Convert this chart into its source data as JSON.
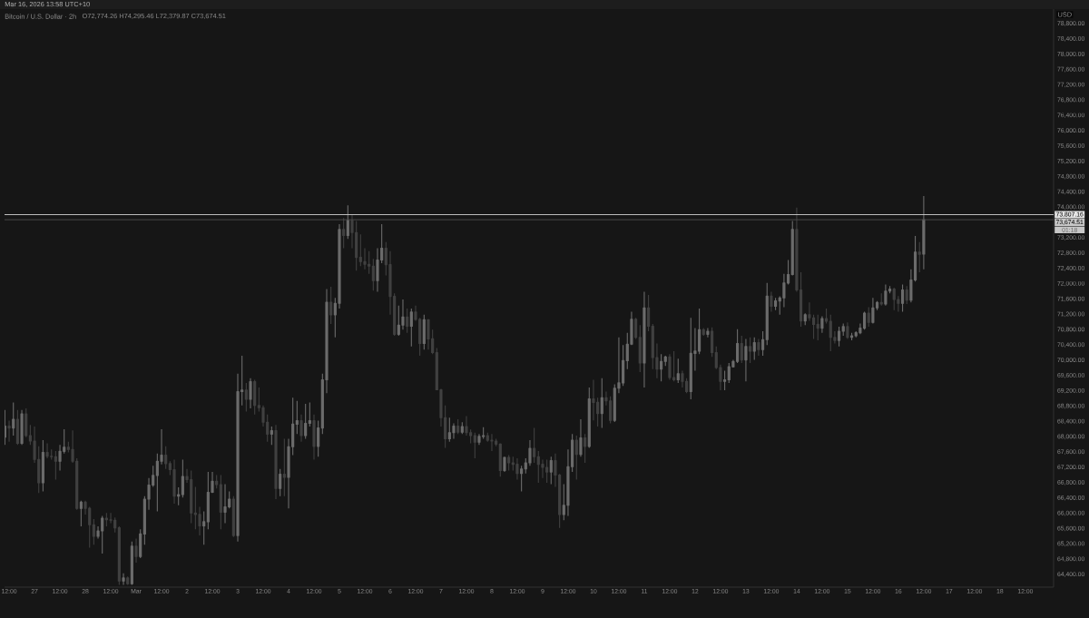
{
  "chart_data": {
    "type": "candlestick",
    "title": "Bitcoin / U.S. Dollar · 2h",
    "subtitle": "O72,774.26 H74,295.46 L72,379.87 C73,674.51",
    "ylabel": "USD",
    "annotations": [
      "Mar 16, 2026 13:58 UTC+10",
      "01:18"
    ],
    "xlim": [
      "2026-02-26T09:50",
      "2026-03-19T01:20"
    ],
    "ylim": [
      64070,
      79180
    ],
    "x": [
      "2026-02-26T10:00",
      "2026-02-26T12:00",
      "2026-02-26T14:00",
      "2026-02-26T16:00",
      "2026-02-26T18:00",
      "2026-02-26T20:00",
      "2026-02-26T22:00",
      "2026-02-27T00:00",
      "2026-02-27T02:00",
      "2026-02-27T04:00",
      "2026-02-27T06:00",
      "2026-02-27T08:00",
      "2026-02-27T10:00",
      "2026-02-27T12:00",
      "2026-02-27T14:00",
      "2026-02-27T16:00",
      "2026-02-27T18:00",
      "2026-02-27T20:00",
      "2026-02-27T22:00",
      "2026-02-28T00:00",
      "2026-02-28T02:00",
      "2026-02-28T04:00",
      "2026-02-28T06:00",
      "2026-02-28T08:00",
      "2026-02-28T10:00",
      "2026-02-28T12:00",
      "2026-02-28T14:00",
      "2026-02-28T16:00",
      "2026-02-28T18:00",
      "2026-02-28T20:00",
      "2026-02-28T22:00",
      "2026-03-01T00:00",
      "2026-03-01T02:00",
      "2026-03-01T04:00",
      "2026-03-01T06:00",
      "2026-03-01T08:00",
      "2026-03-01T10:00",
      "2026-03-01T12:00",
      "2026-03-01T14:00",
      "2026-03-01T16:00",
      "2026-03-01T18:00",
      "2026-03-01T20:00",
      "2026-03-01T22:00",
      "2026-03-02T00:00",
      "2026-03-02T02:00",
      "2026-03-02T04:00",
      "2026-03-02T06:00",
      "2026-03-02T08:00",
      "2026-03-02T10:00",
      "2026-03-02T12:00",
      "2026-03-02T14:00",
      "2026-03-02T16:00",
      "2026-03-02T18:00",
      "2026-03-02T20:00",
      "2026-03-02T22:00",
      "2026-03-03T00:00",
      "2026-03-03T02:00",
      "2026-03-03T04:00",
      "2026-03-03T06:00",
      "2026-03-03T08:00",
      "2026-03-03T10:00",
      "2026-03-03T12:00",
      "2026-03-03T14:00",
      "2026-03-03T16:00",
      "2026-03-03T18:00",
      "2026-03-03T20:00",
      "2026-03-03T22:00",
      "2026-03-04T00:00",
      "2026-03-04T02:00",
      "2026-03-04T04:00",
      "2026-03-04T06:00",
      "2026-03-04T08:00",
      "2026-03-04T10:00",
      "2026-03-04T12:00",
      "2026-03-04T14:00",
      "2026-03-04T16:00",
      "2026-03-04T18:00",
      "2026-03-04T20:00",
      "2026-03-04T22:00",
      "2026-03-05T00:00",
      "2026-03-05T02:00",
      "2026-03-05T04:00",
      "2026-03-05T06:00",
      "2026-03-05T08:00",
      "2026-03-05T10:00",
      "2026-03-05T12:00",
      "2026-03-05T14:00",
      "2026-03-05T16:00",
      "2026-03-05T18:00",
      "2026-03-05T20:00",
      "2026-03-05T22:00",
      "2026-03-06T00:00",
      "2026-03-06T02:00",
      "2026-03-06T04:00",
      "2026-03-06T06:00",
      "2026-03-06T08:00",
      "2026-03-06T10:00",
      "2026-03-06T12:00",
      "2026-03-06T14:00",
      "2026-03-06T16:00",
      "2026-03-06T18:00",
      "2026-03-06T20:00",
      "2026-03-06T22:00",
      "2026-03-07T00:00",
      "2026-03-07T02:00",
      "2026-03-07T04:00",
      "2026-03-07T06:00",
      "2026-03-07T08:00",
      "2026-03-07T10:00",
      "2026-03-07T12:00",
      "2026-03-07T14:00",
      "2026-03-07T16:00",
      "2026-03-07T18:00",
      "2026-03-07T20:00",
      "2026-03-07T22:00",
      "2026-03-08T00:00",
      "2026-03-08T02:00",
      "2026-03-08T04:00",
      "2026-03-08T06:00",
      "2026-03-08T08:00",
      "2026-03-08T10:00",
      "2026-03-08T12:00",
      "2026-03-08T14:00",
      "2026-03-08T16:00",
      "2026-03-08T18:00",
      "2026-03-08T20:00",
      "2026-03-08T22:00",
      "2026-03-09T00:00",
      "2026-03-09T02:00",
      "2026-03-09T04:00",
      "2026-03-09T06:00",
      "2026-03-09T08:00",
      "2026-03-09T10:00",
      "2026-03-09T12:00",
      "2026-03-09T14:00",
      "2026-03-09T16:00",
      "2026-03-09T18:00",
      "2026-03-09T20:00",
      "2026-03-09T22:00",
      "2026-03-10T00:00",
      "2026-03-10T02:00",
      "2026-03-10T04:00",
      "2026-03-10T06:00",
      "2026-03-10T08:00",
      "2026-03-10T10:00",
      "2026-03-10T12:00",
      "2026-03-10T14:00",
      "2026-03-10T16:00",
      "2026-03-10T18:00",
      "2026-03-10T20:00",
      "2026-03-10T22:00",
      "2026-03-11T00:00",
      "2026-03-11T02:00",
      "2026-03-11T04:00",
      "2026-03-11T06:00",
      "2026-03-11T08:00",
      "2026-03-11T10:00",
      "2026-03-11T12:00",
      "2026-03-11T14:00",
      "2026-03-11T16:00",
      "2026-03-11T18:00",
      "2026-03-11T20:00",
      "2026-03-11T22:00",
      "2026-03-12T00:00",
      "2026-03-12T02:00",
      "2026-03-12T04:00",
      "2026-03-12T06:00",
      "2026-03-12T08:00",
      "2026-03-12T10:00",
      "2026-03-12T12:00",
      "2026-03-12T14:00",
      "2026-03-12T16:00",
      "2026-03-12T18:00",
      "2026-03-12T20:00",
      "2026-03-12T22:00",
      "2026-03-13T00:00",
      "2026-03-13T02:00",
      "2026-03-13T04:00",
      "2026-03-13T06:00",
      "2026-03-13T08:00",
      "2026-03-13T10:00",
      "2026-03-13T12:00",
      "2026-03-13T14:00",
      "2026-03-13T16:00",
      "2026-03-13T18:00",
      "2026-03-13T20:00",
      "2026-03-13T22:00",
      "2026-03-14T00:00",
      "2026-03-14T02:00",
      "2026-03-14T04:00",
      "2026-03-14T06:00",
      "2026-03-14T08:00",
      "2026-03-14T10:00",
      "2026-03-14T12:00",
      "2026-03-14T14:00",
      "2026-03-14T16:00",
      "2026-03-14T18:00",
      "2026-03-14T20:00",
      "2026-03-14T22:00",
      "2026-03-15T00:00",
      "2026-03-15T02:00",
      "2026-03-15T04:00",
      "2026-03-15T06:00",
      "2026-03-15T08:00",
      "2026-03-15T10:00",
      "2026-03-15T12:00",
      "2026-03-15T14:00",
      "2026-03-15T16:00",
      "2026-03-15T18:00",
      "2026-03-15T20:00",
      "2026-03-15T22:00",
      "2026-03-16T00:00",
      "2026-03-16T02:00",
      "2026-03-16T04:00",
      "2026-03-16T06:00",
      "2026-03-16T08:00",
      "2026-03-16T10:00",
      "2026-03-16T12:00"
    ],
    "ohlc": [
      [
        67990,
        68700,
        67790,
        68280
      ],
      [
        68280,
        68420,
        67870,
        68230
      ],
      [
        68230,
        68900,
        68030,
        68460
      ],
      [
        68460,
        68700,
        67790,
        67830
      ],
      [
        67830,
        68700,
        67790,
        68600
      ],
      [
        68600,
        68740,
        67990,
        68030
      ],
      [
        68030,
        68310,
        67790,
        67890
      ],
      [
        67890,
        68270,
        67320,
        67410
      ],
      [
        67410,
        67750,
        66530,
        66800
      ],
      [
        66800,
        67910,
        66570,
        67590
      ],
      [
        67590,
        67830,
        67440,
        67490
      ],
      [
        67490,
        67670,
        67400,
        67480
      ],
      [
        67480,
        67630,
        66880,
        67360
      ],
      [
        67360,
        67790,
        67120,
        67620
      ],
      [
        67620,
        68200,
        67560,
        67730
      ],
      [
        67730,
        67870,
        67590,
        67670
      ],
      [
        67670,
        68170,
        67320,
        67360
      ],
      [
        67360,
        67440,
        66090,
        66130
      ],
      [
        66130,
        66330,
        65660,
        66290
      ],
      [
        66290,
        66330,
        65970,
        66130
      ],
      [
        66130,
        66170,
        65100,
        65700
      ],
      [
        65700,
        65850,
        65180,
        65400
      ],
      [
        65400,
        65660,
        65340,
        65540
      ],
      [
        65540,
        65930,
        64950,
        65870
      ],
      [
        65870,
        66010,
        65660,
        65830
      ],
      [
        65830,
        66010,
        65740,
        65820
      ],
      [
        65820,
        65890,
        65500,
        65620
      ],
      [
        65620,
        65660,
        64130,
        64230
      ],
      [
        64230,
        64430,
        64130,
        64310
      ],
      [
        64310,
        64350,
        64130,
        64160
      ],
      [
        64160,
        65260,
        64130,
        65140
      ],
      [
        65140,
        65340,
        64710,
        64870
      ],
      [
        64870,
        65580,
        64830,
        65460
      ],
      [
        65460,
        66450,
        65180,
        66370
      ],
      [
        66370,
        66920,
        66090,
        66740
      ],
      [
        66740,
        67240,
        66690,
        66990
      ],
      [
        66990,
        67560,
        66050,
        67360
      ],
      [
        67360,
        68200,
        67280,
        67520
      ],
      [
        67520,
        67750,
        67160,
        67300
      ],
      [
        67300,
        67360,
        67000,
        67140
      ],
      [
        67140,
        67400,
        66250,
        66450
      ],
      [
        66450,
        66680,
        66210,
        66490
      ],
      [
        66490,
        67400,
        66410,
        66960
      ],
      [
        66960,
        67160,
        66800,
        66880
      ],
      [
        66880,
        67120,
        65740,
        66010
      ],
      [
        66010,
        66690,
        65580,
        65970
      ],
      [
        65970,
        66170,
        65420,
        65670
      ],
      [
        65670,
        66050,
        65180,
        65780
      ],
      [
        65780,
        67080,
        65580,
        66550
      ],
      [
        66550,
        67080,
        66530,
        66840
      ],
      [
        66840,
        67000,
        66650,
        66750
      ],
      [
        66750,
        67000,
        65580,
        66030
      ],
      [
        66030,
        66760,
        65740,
        66170
      ],
      [
        66170,
        66570,
        66130,
        66370
      ],
      [
        66370,
        66450,
        65380,
        65420
      ],
      [
        65420,
        69650,
        65260,
        69180
      ],
      [
        69180,
        70120,
        68820,
        69220
      ],
      [
        69220,
        69410,
        68660,
        68980
      ],
      [
        68980,
        69530,
        68740,
        69440
      ],
      [
        69440,
        69490,
        68580,
        68820
      ],
      [
        68820,
        69290,
        68660,
        68760
      ],
      [
        68760,
        68820,
        68270,
        68380
      ],
      [
        68380,
        68580,
        67870,
        68070
      ],
      [
        68070,
        68270,
        67790,
        68160
      ],
      [
        68160,
        68310,
        66370,
        66650
      ],
      [
        66650,
        67160,
        66450,
        67020
      ],
      [
        67020,
        67950,
        66450,
        66940
      ],
      [
        66940,
        67950,
        66130,
        67740
      ],
      [
        67740,
        69020,
        67520,
        68330
      ],
      [
        68330,
        68940,
        68070,
        68420
      ],
      [
        68420,
        68580,
        67870,
        68030
      ],
      [
        68030,
        68860,
        67950,
        68350
      ],
      [
        68350,
        68900,
        68270,
        68420
      ],
      [
        68420,
        68580,
        67400,
        67750
      ],
      [
        67750,
        68420,
        67480,
        68230
      ],
      [
        68230,
        69650,
        68070,
        69490
      ],
      [
        69490,
        71860,
        69140,
        71520
      ],
      [
        71520,
        71920,
        70950,
        71190
      ],
      [
        71190,
        71630,
        70600,
        71490
      ],
      [
        71490,
        73560,
        71350,
        73420
      ],
      [
        73420,
        73720,
        72930,
        73260
      ],
      [
        73260,
        74050,
        73170,
        73660
      ],
      [
        73660,
        73800,
        72930,
        73340
      ],
      [
        73340,
        73640,
        72340,
        72690
      ],
      [
        72690,
        73290,
        72460,
        72580
      ],
      [
        72580,
        72930,
        72380,
        72510
      ],
      [
        72510,
        72850,
        72260,
        72460
      ],
      [
        72460,
        72650,
        71820,
        72080
      ],
      [
        72080,
        72930,
        71790,
        72620
      ],
      [
        72620,
        73560,
        72540,
        72930
      ],
      [
        72930,
        73090,
        72220,
        72500
      ],
      [
        72500,
        72850,
        71190,
        71670
      ],
      [
        71670,
        71750,
        70640,
        70680
      ],
      [
        70680,
        71430,
        70640,
        70920
      ],
      [
        70920,
        71590,
        70800,
        71130
      ],
      [
        71130,
        71350,
        70720,
        70890
      ],
      [
        70890,
        71350,
        70360,
        71260
      ],
      [
        71260,
        71430,
        71030,
        71070
      ],
      [
        71070,
        71110,
        70120,
        70440
      ],
      [
        70440,
        71190,
        70280,
        71060
      ],
      [
        71060,
        71070,
        70280,
        70560
      ],
      [
        70560,
        70800,
        70160,
        70200
      ],
      [
        70200,
        70320,
        69220,
        69230
      ],
      [
        69230,
        69250,
        68270,
        68500
      ],
      [
        68500,
        68820,
        67710,
        67950
      ],
      [
        67950,
        68500,
        67870,
        68110
      ],
      [
        68110,
        68350,
        67950,
        68280
      ],
      [
        68280,
        68460,
        68070,
        68120
      ],
      [
        68120,
        68380,
        68070,
        68270
      ],
      [
        68270,
        68540,
        68030,
        68110
      ],
      [
        68110,
        68190,
        67830,
        68030
      ],
      [
        68030,
        68110,
        67440,
        67860
      ],
      [
        67860,
        68070,
        67790,
        68010
      ],
      [
        68010,
        68250,
        67950,
        68030
      ],
      [
        68030,
        68110,
        67870,
        67910
      ],
      [
        67910,
        68070,
        67630,
        67890
      ],
      [
        67890,
        67950,
        67750,
        67810
      ],
      [
        67810,
        67830,
        66960,
        67120
      ],
      [
        67120,
        67480,
        67080,
        67460
      ],
      [
        67460,
        67520,
        67120,
        67320
      ],
      [
        67320,
        67480,
        67120,
        67280
      ],
      [
        67280,
        67440,
        66880,
        67040
      ],
      [
        67040,
        67240,
        66570,
        67160
      ],
      [
        67160,
        67440,
        67040,
        67320
      ],
      [
        67320,
        67910,
        67240,
        67700
      ],
      [
        67700,
        68230,
        67320,
        67480
      ],
      [
        67480,
        67630,
        66800,
        67280
      ],
      [
        67280,
        67400,
        66920,
        67200
      ],
      [
        67200,
        67400,
        66800,
        67080
      ],
      [
        67080,
        67480,
        66760,
        67380
      ],
      [
        67380,
        67560,
        66690,
        67000
      ],
      [
        67000,
        67030,
        65620,
        65970
      ],
      [
        65970,
        66760,
        65820,
        66210
      ],
      [
        66210,
        67670,
        65930,
        67220
      ],
      [
        67220,
        68070,
        67080,
        67910
      ],
      [
        67910,
        68030,
        66880,
        67540
      ],
      [
        67540,
        68460,
        67480,
        67970
      ],
      [
        67970,
        68070,
        67320,
        67750
      ],
      [
        67750,
        69290,
        67710,
        68990
      ],
      [
        68990,
        69490,
        68430,
        68900
      ],
      [
        68900,
        69020,
        68270,
        68610
      ],
      [
        68610,
        69530,
        68230,
        69020
      ],
      [
        69020,
        69180,
        68820,
        68940
      ],
      [
        68940,
        69060,
        68350,
        68430
      ],
      [
        68430,
        69370,
        68390,
        69270
      ],
      [
        69270,
        70600,
        69140,
        69410
      ],
      [
        69410,
        70400,
        69330,
        69990
      ],
      [
        69990,
        70720,
        69770,
        70420
      ],
      [
        70420,
        71270,
        70400,
        71070
      ],
      [
        71070,
        71110,
        70560,
        70600
      ],
      [
        70600,
        70920,
        69690,
        69930
      ],
      [
        69930,
        71790,
        69290,
        71370
      ],
      [
        71370,
        71710,
        70760,
        70890
      ],
      [
        70890,
        70950,
        69770,
        70070
      ],
      [
        70070,
        70440,
        69530,
        69770
      ],
      [
        69770,
        70160,
        69450,
        69970
      ],
      [
        69970,
        70120,
        69850,
        70090
      ],
      [
        70090,
        70160,
        69490,
        69550
      ],
      [
        69550,
        70240,
        69450,
        69490
      ],
      [
        69490,
        70040,
        69410,
        69650
      ],
      [
        69650,
        69730,
        69290,
        69450
      ],
      [
        69450,
        69530,
        69140,
        69180
      ],
      [
        69180,
        71110,
        68980,
        70180
      ],
      [
        70180,
        70840,
        69730,
        70240
      ],
      [
        70240,
        71350,
        70160,
        70800
      ],
      [
        70800,
        70840,
        70640,
        70680
      ],
      [
        70680,
        70840,
        70600,
        70760
      ],
      [
        70760,
        70860,
        70090,
        70200
      ],
      [
        70200,
        70360,
        69770,
        69810
      ],
      [
        69810,
        69890,
        69220,
        69450
      ],
      [
        69450,
        69730,
        69220,
        69490
      ],
      [
        69490,
        69930,
        69410,
        69830
      ],
      [
        69830,
        70010,
        69810,
        69970
      ],
      [
        69970,
        70810,
        69930,
        70440
      ],
      [
        70440,
        70640,
        69930,
        70010
      ],
      [
        70010,
        70560,
        69450,
        70360
      ],
      [
        70360,
        70600,
        69930,
        70240
      ],
      [
        70240,
        70600,
        70010,
        70460
      ],
      [
        70460,
        70560,
        70120,
        70280
      ],
      [
        70280,
        70760,
        70120,
        70540
      ],
      [
        70540,
        72020,
        70400,
        71680
      ],
      [
        71680,
        71790,
        71270,
        71410
      ],
      [
        71410,
        71630,
        71310,
        71550
      ],
      [
        71550,
        71670,
        71190,
        71630
      ],
      [
        71630,
        72260,
        71390,
        72020
      ],
      [
        72020,
        72620,
        71980,
        72240
      ],
      [
        72240,
        73640,
        72220,
        73420
      ],
      [
        73420,
        73990,
        71790,
        71840
      ],
      [
        71840,
        72300,
        70880,
        71030
      ],
      [
        71030,
        71230,
        70920,
        71190
      ],
      [
        71190,
        71510,
        71030,
        71110
      ],
      [
        71110,
        71190,
        70560,
        70940
      ],
      [
        70940,
        71190,
        70520,
        70840
      ],
      [
        70840,
        71150,
        70720,
        71090
      ],
      [
        71090,
        71350,
        70960,
        71020
      ],
      [
        71020,
        71190,
        70240,
        70600
      ],
      [
        70600,
        70760,
        70440,
        70520
      ],
      [
        70520,
        70880,
        70360,
        70760
      ],
      [
        70760,
        70960,
        70640,
        70880
      ],
      [
        70880,
        70990,
        70560,
        70600
      ],
      [
        70600,
        70720,
        70520,
        70640
      ],
      [
        70640,
        70760,
        70600,
        70720
      ],
      [
        70720,
        70960,
        70680,
        70840
      ],
      [
        70840,
        71270,
        70800,
        71230
      ],
      [
        71230,
        71390,
        70880,
        70990
      ],
      [
        70990,
        71630,
        70960,
        71370
      ],
      [
        71370,
        71550,
        71310,
        71510
      ],
      [
        71510,
        71750,
        71430,
        71470
      ],
      [
        71470,
        71980,
        71430,
        71810
      ],
      [
        71810,
        71940,
        71750,
        71860
      ],
      [
        71860,
        71900,
        71310,
        71590
      ],
      [
        71590,
        71680,
        71270,
        71490
      ],
      [
        71490,
        71980,
        71270,
        71840
      ],
      [
        71840,
        71940,
        71470,
        71570
      ],
      [
        71570,
        72380,
        71510,
        72100
      ],
      [
        72100,
        73250,
        72060,
        72830
      ],
      [
        72830,
        73090,
        72300,
        72770
      ],
      [
        72774.26,
        74295.46,
        72379.87,
        73674.51
      ]
    ],
    "colors": [
      "#6b6b6b",
      "#404040",
      "#6b6b6b",
      "#404040",
      "#6b6b6b",
      "#404040",
      "#404040",
      "#404040",
      "#404040",
      "#6b6b6b",
      "#404040",
      "#404040",
      "#404040",
      "#6b6b6b",
      "#6b6b6b",
      "#404040",
      "#404040",
      "#404040",
      "#6b6b6b",
      "#404040",
      "#404040",
      "#404040",
      "#6b6b6b",
      "#6b6b6b",
      "#404040",
      "#404040",
      "#404040",
      "#404040",
      "#6b6b6b",
      "#404040",
      "#6b6b6b",
      "#404040",
      "#6b6b6b",
      "#6b6b6b",
      "#6b6b6b",
      "#6b6b6b",
      "#6b6b6b",
      "#6b6b6b",
      "#404040",
      "#404040",
      "#404040",
      "#6b6b6b",
      "#6b6b6b",
      "#404040",
      "#404040",
      "#404040",
      "#404040",
      "#6b6b6b",
      "#6b6b6b",
      "#6b6b6b",
      "#404040",
      "#404040",
      "#6b6b6b",
      "#6b6b6b",
      "#404040",
      "#6b6b6b",
      "#6b6b6b",
      "#404040",
      "#6b6b6b",
      "#404040",
      "#404040",
      "#404040",
      "#404040",
      "#6b6b6b",
      "#404040",
      "#6b6b6b",
      "#404040",
      "#6b6b6b",
      "#6b6b6b",
      "#6b6b6b",
      "#404040",
      "#6b6b6b",
      "#6b6b6b",
      "#404040",
      "#6b6b6b",
      "#6b6b6b",
      "#6b6b6b",
      "#404040",
      "#6b6b6b",
      "#6b6b6b",
      "#404040",
      "#6b6b6b",
      "#404040",
      "#404040",
      "#404040",
      "#404040",
      "#404040",
      "#404040",
      "#6b6b6b",
      "#6b6b6b",
      "#404040",
      "#404040",
      "#404040",
      "#6b6b6b",
      "#6b6b6b",
      "#404040",
      "#6b6b6b",
      "#404040",
      "#404040",
      "#6b6b6b",
      "#404040",
      "#404040",
      "#404040",
      "#404040",
      "#404040",
      "#6b6b6b",
      "#6b6b6b",
      "#404040",
      "#6b6b6b",
      "#404040",
      "#404040",
      "#404040",
      "#6b6b6b",
      "#6b6b6b",
      "#404040",
      "#404040",
      "#404040",
      "#404040",
      "#6b6b6b",
      "#404040",
      "#404040",
      "#404040",
      "#6b6b6b",
      "#6b6b6b",
      "#6b6b6b",
      "#404040",
      "#404040",
      "#404040",
      "#404040",
      "#6b6b6b",
      "#404040",
      "#404040",
      "#6b6b6b",
      "#6b6b6b",
      "#6b6b6b",
      "#404040",
      "#6b6b6b",
      "#404040",
      "#6b6b6b",
      "#404040",
      "#404040",
      "#6b6b6b",
      "#404040",
      "#404040",
      "#6b6b6b",
      "#6b6b6b",
      "#6b6b6b",
      "#6b6b6b",
      "#6b6b6b",
      "#404040",
      "#404040",
      "#6b6b6b",
      "#404040",
      "#404040",
      "#404040",
      "#6b6b6b",
      "#6b6b6b",
      "#404040",
      "#404040",
      "#6b6b6b",
      "#404040",
      "#404040",
      "#6b6b6b",
      "#6b6b6b",
      "#6b6b6b",
      "#404040",
      "#6b6b6b",
      "#404040",
      "#404040",
      "#404040",
      "#6b6b6b",
      "#6b6b6b",
      "#6b6b6b",
      "#6b6b6b",
      "#404040",
      "#6b6b6b",
      "#404040",
      "#6b6b6b",
      "#404040",
      "#6b6b6b",
      "#6b6b6b",
      "#404040",
      "#6b6b6b",
      "#6b6b6b",
      "#6b6b6b",
      "#6b6b6b",
      "#6b6b6b",
      "#404040",
      "#404040",
      "#6b6b6b",
      "#404040",
      "#404040",
      "#404040",
      "#6b6b6b",
      "#404040",
      "#404040",
      "#404040",
      "#6b6b6b",
      "#6b6b6b",
      "#404040",
      "#6b6b6b",
      "#6b6b6b",
      "#6b6b6b",
      "#6b6b6b",
      "#404040",
      "#6b6b6b",
      "#6b6b6b",
      "#404040",
      "#6b6b6b",
      "#6b6b6b",
      "#404040",
      "#404040",
      "#6b6b6b",
      "#404040",
      "#6b6b6b",
      "#6b6b6b",
      "#404040",
      "#6b6b6b"
    ],
    "xticks": [
      {
        "value": "2026-02-26T12:00",
        "label": "12:00"
      },
      {
        "value": "2026-02-27",
        "label": "27"
      },
      {
        "value": "2026-02-27T12:00",
        "label": "12:00"
      },
      {
        "value": "2026-02-28",
        "label": "28"
      },
      {
        "value": "2026-02-28T12:00",
        "label": "12:00"
      },
      {
        "value": "2026-03-01",
        "label": "Mar"
      },
      {
        "value": "2026-03-01T12:00",
        "label": "12:00"
      },
      {
        "value": "2026-03-02",
        "label": "2"
      },
      {
        "value": "2026-03-02T12:00",
        "label": "12:00"
      },
      {
        "value": "2026-03-03",
        "label": "3"
      },
      {
        "value": "2026-03-03T12:00",
        "label": "12:00"
      },
      {
        "value": "2026-03-04",
        "label": "4"
      },
      {
        "value": "2026-03-04T12:00",
        "label": "12:00"
      },
      {
        "value": "2026-03-05",
        "label": "5"
      },
      {
        "value": "2026-03-05T12:00",
        "label": "12:00"
      },
      {
        "value": "2026-03-06",
        "label": "6"
      },
      {
        "value": "2026-03-06T12:00",
        "label": "12:00"
      },
      {
        "value": "2026-03-07",
        "label": "7"
      },
      {
        "value": "2026-03-07T12:00",
        "label": "12:00"
      },
      {
        "value": "2026-03-08",
        "label": "8"
      },
      {
        "value": "2026-03-08T12:00",
        "label": "12:00"
      },
      {
        "value": "2026-03-09",
        "label": "9"
      },
      {
        "value": "2026-03-09T12:00",
        "label": "12:00"
      },
      {
        "value": "2026-03-10",
        "label": "10"
      },
      {
        "value": "2026-03-10T12:00",
        "label": "12:00"
      },
      {
        "value": "2026-03-11",
        "label": "11"
      },
      {
        "value": "2026-03-11T12:00",
        "label": "12:00"
      },
      {
        "value": "2026-03-12",
        "label": "12"
      },
      {
        "value": "2026-03-12T12:00",
        "label": "12:00"
      },
      {
        "value": "2026-03-13",
        "label": "13"
      },
      {
        "value": "2026-03-13T12:00",
        "label": "12:00"
      },
      {
        "value": "2026-03-14",
        "label": "14"
      },
      {
        "value": "2026-03-14T12:00",
        "label": "12:00"
      },
      {
        "value": "2026-03-15",
        "label": "15"
      },
      {
        "value": "2026-03-15T12:00",
        "label": "12:00"
      },
      {
        "value": "2026-03-16",
        "label": "16"
      },
      {
        "value": "2026-03-16T12:00",
        "label": "12:00"
      },
      {
        "value": "2026-03-17",
        "label": "17"
      },
      {
        "value": "2026-03-17T12:00",
        "label": "12:00"
      },
      {
        "value": "2026-03-18",
        "label": "18"
      },
      {
        "value": "2026-03-18T12:00",
        "label": "12:00"
      }
    ],
    "yticks": [
      {
        "value": 64400,
        "label": "64,400.00"
      },
      {
        "value": 64800,
        "label": "64,800.00"
      },
      {
        "value": 65200,
        "label": "65,200.00"
      },
      {
        "value": 65600,
        "label": "65,600.00"
      },
      {
        "value": 66000,
        "label": "66,000.00"
      },
      {
        "value": 66400,
        "label": "66,400.00"
      },
      {
        "value": 66800,
        "label": "66,800.00"
      },
      {
        "value": 67200,
        "label": "67,200.00"
      },
      {
        "value": 67600,
        "label": "67,600.00"
      },
      {
        "value": 68000,
        "label": "68,000.00"
      },
      {
        "value": 68400,
        "label": "68,400.00"
      },
      {
        "value": 68800,
        "label": "68,800.00"
      },
      {
        "value": 69200,
        "label": "69,200.00"
      },
      {
        "value": 69600,
        "label": "69,600.00"
      },
      {
        "value": 70000,
        "label": "70,000.00"
      },
      {
        "value": 70400,
        "label": "70,400.00"
      },
      {
        "value": 70800,
        "label": "70,800.00"
      },
      {
        "value": 71200,
        "label": "71,200.00"
      },
      {
        "value": 71600,
        "label": "71,600.00"
      },
      {
        "value": 72000,
        "label": "72,000.00"
      },
      {
        "value": 72400,
        "label": "72,400.00"
      },
      {
        "value": 72800,
        "label": "72,800.00"
      },
      {
        "value": 73200,
        "label": "73,200.00"
      },
      {
        "value": 74000,
        "label": "74,000.00"
      },
      {
        "value": 74400,
        "label": "74,400.00"
      },
      {
        "value": 74800,
        "label": "74,800.00"
      },
      {
        "value": 75200,
        "label": "75,200.00"
      },
      {
        "value": 75600,
        "label": "75,600.00"
      },
      {
        "value": 76000,
        "label": "76,000.00"
      },
      {
        "value": 76400,
        "label": "76,400.00"
      },
      {
        "value": 76800,
        "label": "76,800.00"
      },
      {
        "value": 77200,
        "label": "77,200.00"
      },
      {
        "value": 77600,
        "label": "77,600.00"
      },
      {
        "value": 78000,
        "label": "78,000.00"
      },
      {
        "value": 78400,
        "label": "78,400.00"
      },
      {
        "value": 78800,
        "label": "78,800.00"
      }
    ],
    "ref_lines": [
      {
        "axis": "y",
        "value": 73807.16,
        "label": "73,807.16",
        "color": "#d0d0d0",
        "line_style": "solid"
      },
      {
        "axis": "y",
        "value": 73674.51,
        "label": "73,674.51",
        "color": "#4e4e4e",
        "line_style": "solid"
      }
    ]
  }
}
